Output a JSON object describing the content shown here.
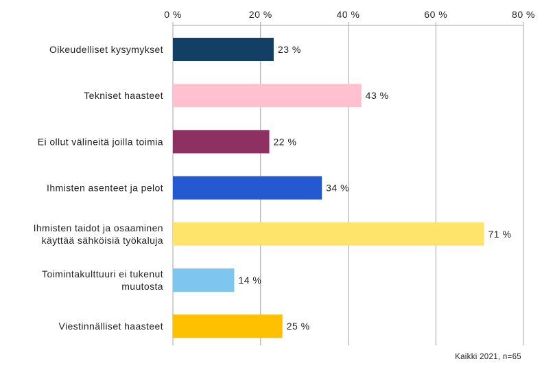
{
  "chart_data": {
    "type": "bar",
    "orientation": "horizontal",
    "categories": [
      [
        "Oikeudelliset kysymykset"
      ],
      [
        "Tekniset haasteet"
      ],
      [
        "Ei ollut välineitä joilla toimia"
      ],
      [
        "Ihmisten asenteet ja pelot"
      ],
      [
        "Ihmisten taidot ja osaaminen",
        "käyttää sähköisiä työkaluja"
      ],
      [
        "Toimintakulttuuri ei tukenut",
        "muutosta"
      ],
      [
        "Viestinnälliset haasteet"
      ]
    ],
    "values": [
      23,
      43,
      22,
      34,
      71,
      14,
      25
    ],
    "value_labels": [
      "23 %",
      "43 %",
      "22 %",
      "34 %",
      "71 %",
      "14 %",
      "25 %"
    ],
    "bar_colors": [
      "#123f63",
      "#ffc0cf",
      "#8e3062",
      "#2459d1",
      "#ffe46b",
      "#7dc6f0",
      "#ffc000"
    ],
    "x_ticks": [
      0,
      20,
      40,
      60,
      80
    ],
    "x_tick_labels": [
      "0 %",
      "20 %",
      "40 %",
      "60 %",
      "80 %"
    ],
    "xlim": [
      0,
      80
    ],
    "x_axis_position": "top",
    "grid": "vertical",
    "grid_color": "#a6a6a6"
  },
  "footnote": "Kaikki 2021, n=65"
}
